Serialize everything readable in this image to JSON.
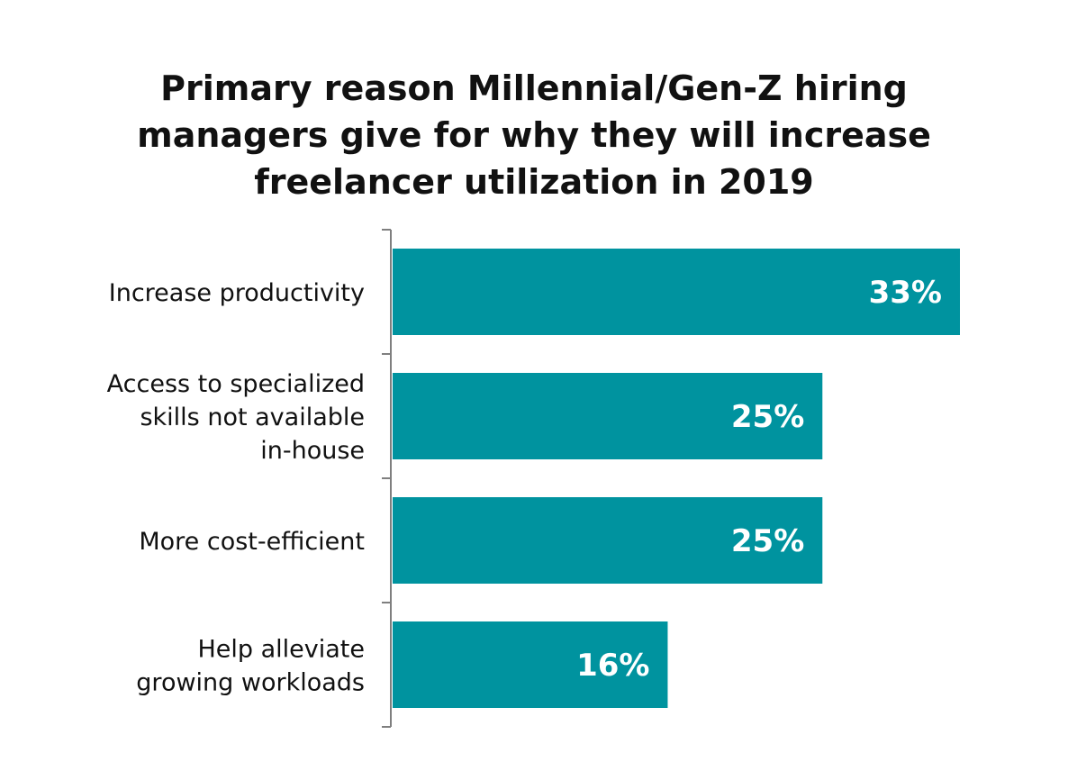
{
  "chart_data": {
    "type": "bar",
    "orientation": "horizontal",
    "title": "Primary reason Millennial/Gen-Z hiring managers give for why they will increase freelancer utilization in 2019",
    "title_lines": [
      "Primary reason Millennial/Gen-Z hiring",
      "managers give for why they will increase",
      "freelancer utilization in 2019"
    ],
    "categories": [
      [
        "Increase productivity"
      ],
      [
        "Access to specialized",
        "skills not available",
        "in-house"
      ],
      [
        "More cost-efficient"
      ],
      [
        "Help alleviate",
        "growing workloads"
      ]
    ],
    "values": [
      33,
      25,
      25,
      16
    ],
    "value_labels": [
      "33%",
      "25%",
      "25%",
      "16%"
    ],
    "xlim": [
      0,
      33
    ],
    "bar_color": "#00939f",
    "axis_color": "#7f7f7f",
    "grid": false,
    "legend": "none"
  }
}
